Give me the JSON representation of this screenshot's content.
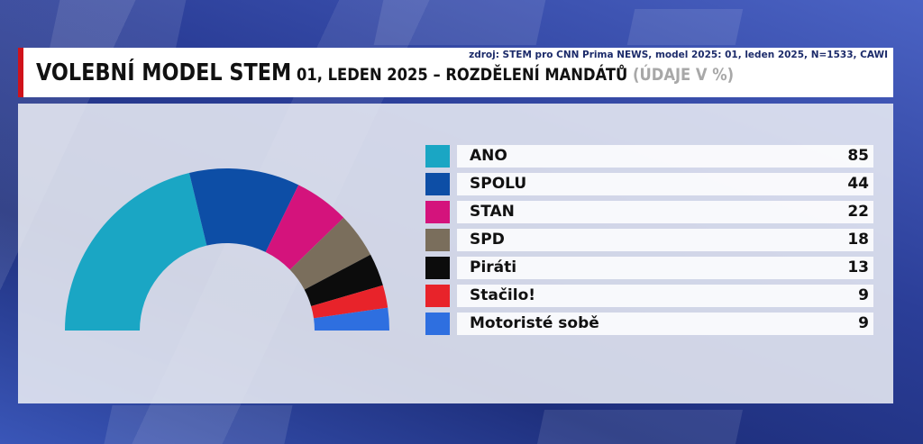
{
  "header": {
    "source": "zdroj: STEM pro CNN Prima NEWS, model 2025: 01, leden 2025, N=1533, CAWI",
    "title_main": "VOLEBNÍ MODEL STEM",
    "title_sub": " 01, LEDEN 2025 – ROZDĚLENÍ MANDÁTŮ",
    "title_unit": " (ÚDAJE V %)"
  },
  "chart_data": {
    "type": "pie",
    "categories": [
      "ANO",
      "SPOLU",
      "STAN",
      "SPD",
      "Piráti",
      "Stačilo!",
      "Motoristé sobě"
    ],
    "values": [
      85,
      44,
      22,
      18,
      13,
      9,
      9
    ],
    "colors": [
      "#1aa6c4",
      "#0d4ea6",
      "#d4137c",
      "#7a6e5c",
      "#0c0c0c",
      "#e8232a",
      "#2e6fe0"
    ],
    "shape": "half-donut",
    "legend": "right"
  }
}
